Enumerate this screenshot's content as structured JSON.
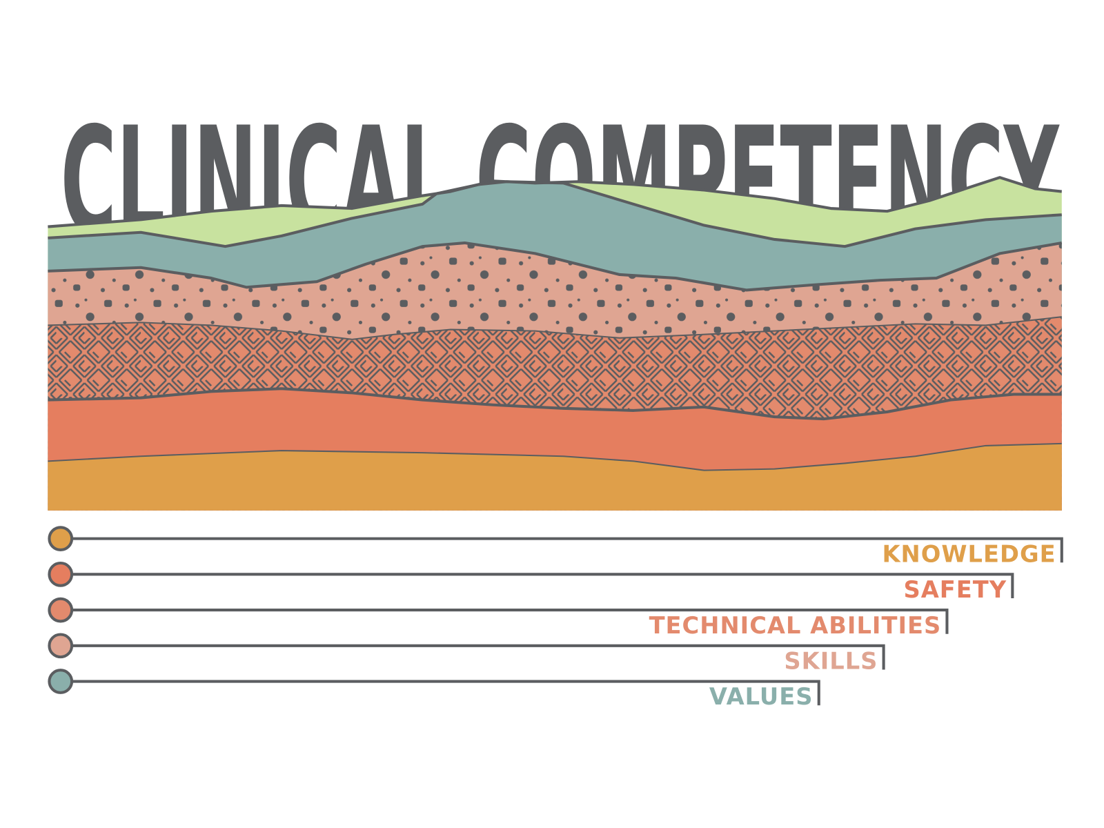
{
  "title": "CLINICAL COMPETENCY",
  "legend": [
    {
      "label": "KNOWLEDGE",
      "color": "#df9f4a"
    },
    {
      "label": "SAFETY",
      "color": "#e57e5f"
    },
    {
      "label": "TECHNICAL ABILITIES",
      "color": "#e38a6d"
    },
    {
      "label": "SKILLS",
      "color": "#dfa592"
    },
    {
      "label": "VALUES",
      "color": "#8aafab"
    }
  ]
}
